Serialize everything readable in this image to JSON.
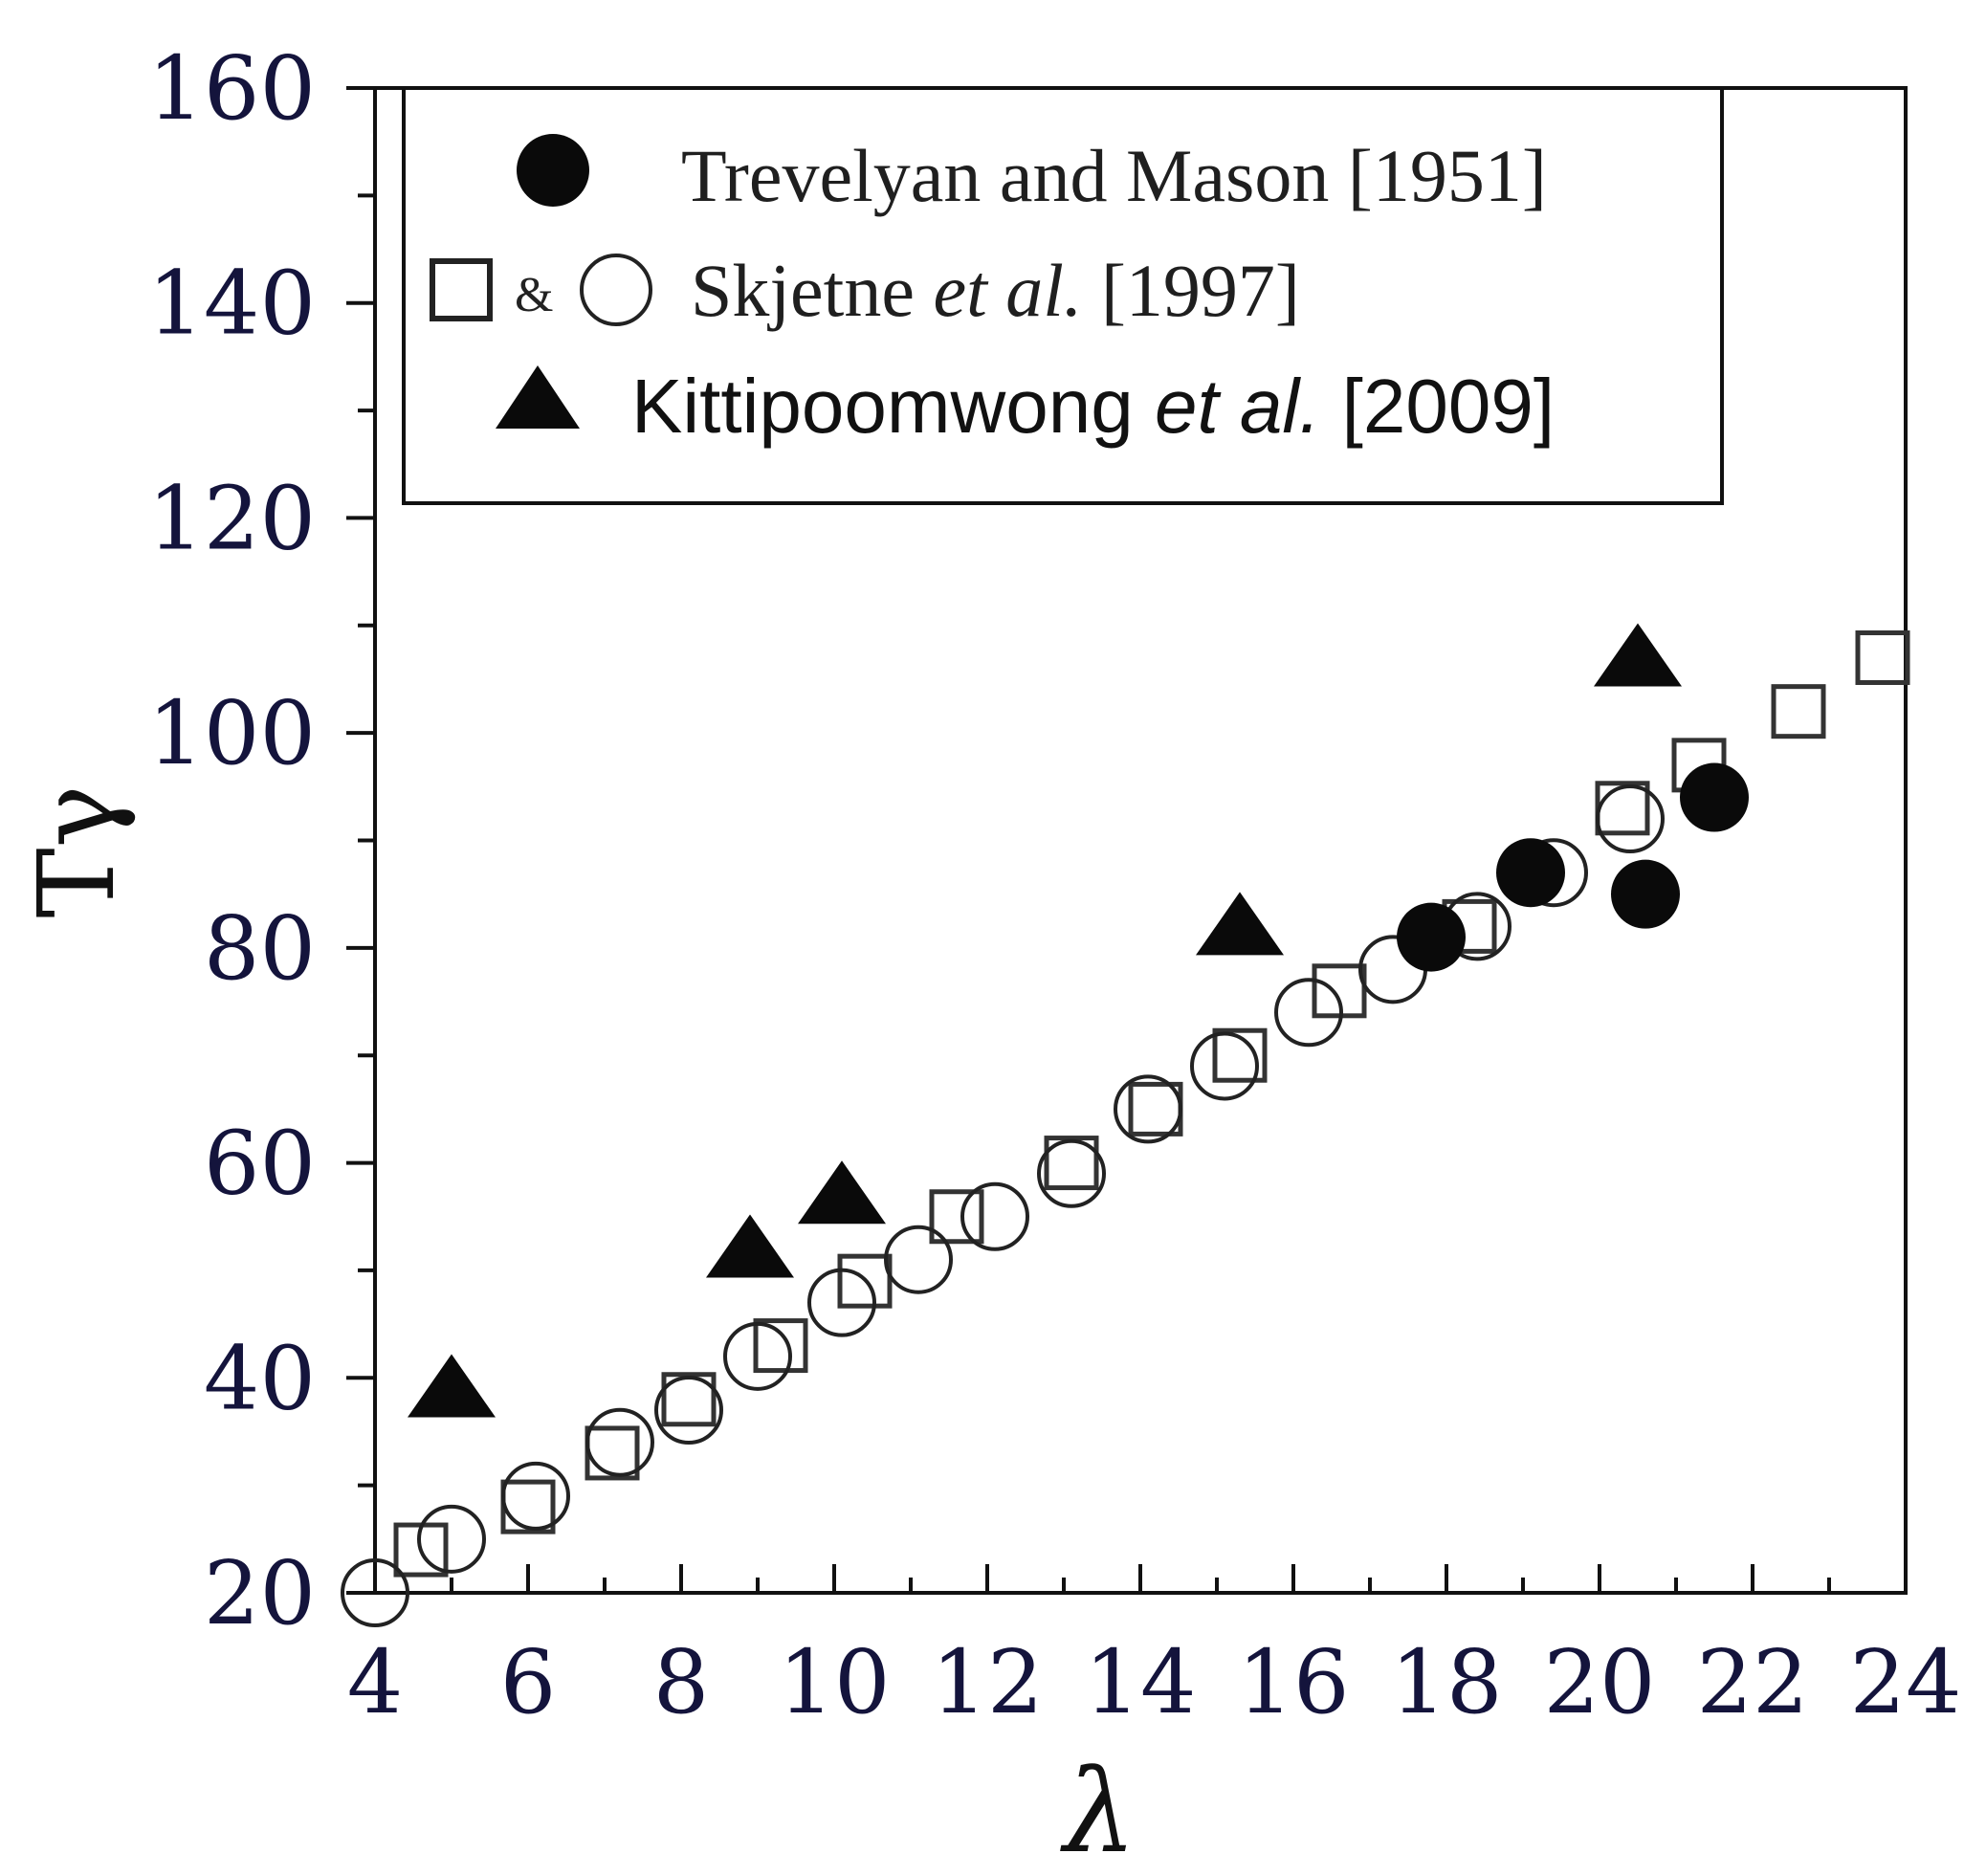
{
  "chart_data": {
    "type": "scatter",
    "title": "",
    "xlabel": "λ",
    "ylabel": "Tγ",
    "xlim": [
      4,
      24
    ],
    "ylim": [
      20,
      160
    ],
    "xticks": [
      4,
      6,
      8,
      10,
      12,
      14,
      16,
      18,
      20,
      22,
      24
    ],
    "yticks": [
      20,
      40,
      60,
      80,
      100,
      120,
      140,
      160
    ],
    "grid": false,
    "legend_position": "top-left",
    "legend": {
      "entry1": "Trevelyan and Mason [1951]",
      "entry2_amp": "&",
      "entry2_name": "Skjetne ",
      "entry2_etal": "et al.",
      "entry2_ref": " [1997]",
      "entry3_name": "Kittipoomwong ",
      "entry3_etal": "et al.",
      "entry3_ref": " [2009]"
    },
    "series": [
      {
        "name": "Trevelyan and Mason [1951]",
        "marker": "filled-circle",
        "x": [
          17.8,
          19.1,
          20.6,
          21.5
        ],
        "y": [
          81,
          87,
          85,
          94
        ]
      },
      {
        "name": "Skjetne et al. [1997] (squares)",
        "marker": "open-square",
        "x": [
          4.6,
          6.0,
          7.1,
          8.1,
          9.3,
          10.4,
          11.6,
          13.1,
          14.2,
          15.3,
          16.6,
          18.3,
          20.3,
          21.3,
          22.6,
          23.7
        ],
        "y": [
          24,
          28,
          33,
          38,
          43,
          49,
          55,
          60,
          65,
          70,
          76,
          82,
          93,
          97,
          102,
          107
        ]
      },
      {
        "name": "Skjetne et al. [1997] (circles)",
        "marker": "open-circle",
        "x": [
          4.0,
          5.0,
          6.1,
          7.2,
          8.1,
          9.0,
          10.1,
          11.1,
          12.1,
          13.1,
          14.1,
          15.1,
          16.2,
          17.3,
          18.4,
          19.4,
          20.4
        ],
        "y": [
          20,
          25,
          29,
          34,
          37,
          42,
          47,
          51,
          55,
          59,
          65,
          69,
          74,
          78,
          82,
          87,
          92
        ]
      },
      {
        "name": "Kittipoomwong et al. [2009]",
        "marker": "filled-triangle",
        "x": [
          5.0,
          8.9,
          10.1,
          15.3,
          20.5
        ],
        "y": [
          39,
          52,
          57,
          82,
          107
        ]
      }
    ]
  }
}
